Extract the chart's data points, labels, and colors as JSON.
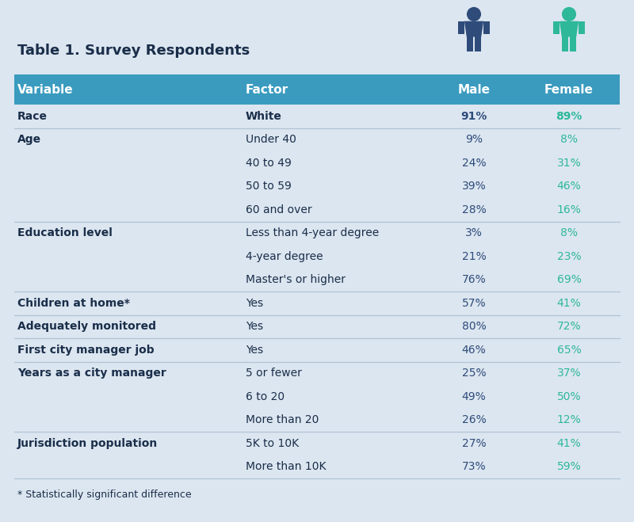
{
  "title": "Table 1. Survey Respondents",
  "footnote": "* Statistically significant difference",
  "bg_color": "#dce6f0",
  "header_color": "#3a9bbf",
  "header_text_color": "#ffffff",
  "male_color": "#2e4b7a",
  "female_color": "#2eb89a",
  "divider_color": "#b0c4d4",
  "text_color": "#1a2e4a",
  "header_row": [
    "Variable",
    "Factor",
    "Male",
    "Female"
  ],
  "rows": [
    {
      "variable": "Race",
      "variable_bold": true,
      "factor": "White",
      "factor_bold": true,
      "male": "91%",
      "female": "89%",
      "bold": true,
      "section_start": true
    },
    {
      "variable": "Age",
      "variable_bold": true,
      "factor": "Under 40",
      "factor_bold": false,
      "male": "9%",
      "female": "8%",
      "bold": false,
      "section_start": true
    },
    {
      "variable": "",
      "variable_bold": false,
      "factor": "40 to 49",
      "factor_bold": false,
      "male": "24%",
      "female": "31%",
      "bold": false,
      "section_start": false
    },
    {
      "variable": "",
      "variable_bold": false,
      "factor": "50 to 59",
      "factor_bold": false,
      "male": "39%",
      "female": "46%",
      "bold": false,
      "section_start": false
    },
    {
      "variable": "",
      "variable_bold": false,
      "factor": "60 and over",
      "factor_bold": false,
      "male": "28%",
      "female": "16%",
      "bold": false,
      "section_start": false
    },
    {
      "variable": "Education level",
      "variable_bold": true,
      "factor": "Less than 4-year degree",
      "factor_bold": false,
      "male": "3%",
      "female": "8%",
      "bold": false,
      "section_start": true
    },
    {
      "variable": "",
      "variable_bold": false,
      "factor": "4-year degree",
      "factor_bold": false,
      "male": "21%",
      "female": "23%",
      "bold": false,
      "section_start": false
    },
    {
      "variable": "",
      "variable_bold": false,
      "factor": "Master's or higher",
      "factor_bold": false,
      "male": "76%",
      "female": "69%",
      "bold": false,
      "section_start": false
    },
    {
      "variable": "Children at home*",
      "variable_bold": true,
      "factor": "Yes",
      "factor_bold": false,
      "male": "57%",
      "female": "41%",
      "bold": false,
      "section_start": true
    },
    {
      "variable": "Adequately monitored",
      "variable_bold": true,
      "factor": "Yes",
      "factor_bold": false,
      "male": "80%",
      "female": "72%",
      "bold": false,
      "section_start": true
    },
    {
      "variable": "First city manager job",
      "variable_bold": true,
      "factor": "Yes",
      "factor_bold": false,
      "male": "46%",
      "female": "65%",
      "bold": false,
      "section_start": true
    },
    {
      "variable": "Years as a city manager",
      "variable_bold": true,
      "factor": "5 or fewer",
      "factor_bold": false,
      "male": "25%",
      "female": "37%",
      "bold": false,
      "section_start": true
    },
    {
      "variable": "",
      "variable_bold": false,
      "factor": "6 to 20",
      "factor_bold": false,
      "male": "49%",
      "female": "50%",
      "bold": false,
      "section_start": false
    },
    {
      "variable": "",
      "variable_bold": false,
      "factor": "More than 20",
      "factor_bold": false,
      "male": "26%",
      "female": "12%",
      "bold": false,
      "section_start": false
    },
    {
      "variable": "Jurisdiction population",
      "variable_bold": true,
      "factor": "5K to 10K",
      "factor_bold": false,
      "male": "27%",
      "female": "41%",
      "bold": false,
      "section_start": true
    },
    {
      "variable": "",
      "variable_bold": false,
      "factor": "More than 10K",
      "factor_bold": false,
      "male": "73%",
      "female": "59%",
      "bold": false,
      "section_start": false
    }
  ],
  "male_icon_color": "#2e4b7a",
  "female_icon_color": "#2eb89a"
}
